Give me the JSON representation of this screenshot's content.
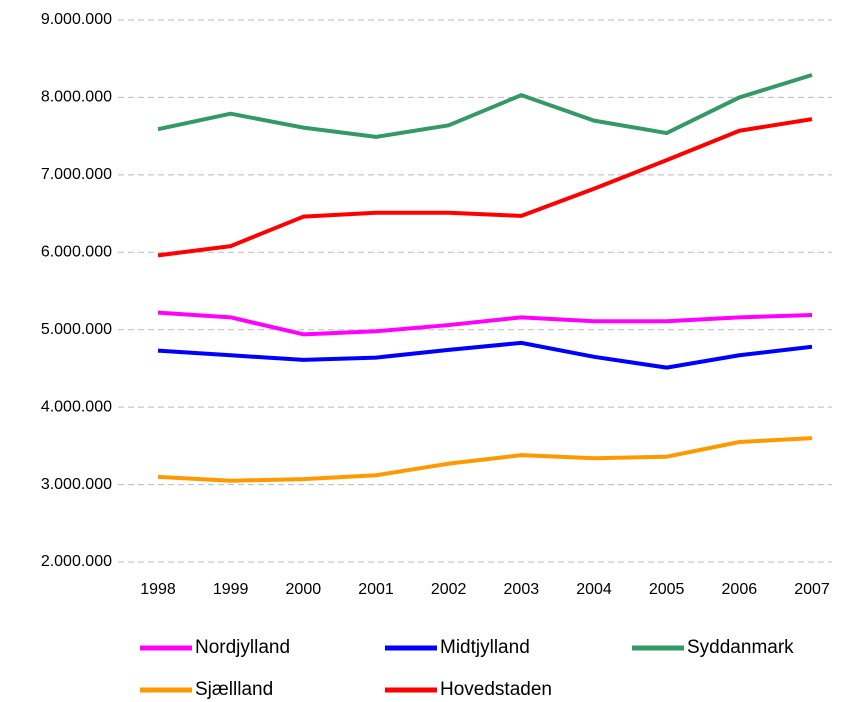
{
  "chart_data": {
    "type": "line",
    "categories": [
      "1998",
      "1999",
      "2000",
      "2001",
      "2002",
      "2003",
      "2004",
      "2005",
      "2006",
      "2007"
    ],
    "series": [
      {
        "name": "Nordjylland",
        "color": "#ff00ff",
        "values": [
          5220000,
          5160000,
          4940000,
          4980000,
          5060000,
          5160000,
          5110000,
          5110000,
          5160000,
          5190000
        ]
      },
      {
        "name": "Midtjylland",
        "color": "#0000ff",
        "values": [
          4730000,
          4670000,
          4610000,
          4640000,
          4740000,
          4830000,
          4650000,
          4510000,
          4670000,
          4780000
        ]
      },
      {
        "name": "Syddanmark",
        "color": "#339966",
        "values": [
          7590000,
          7790000,
          7610000,
          7490000,
          7640000,
          8030000,
          7700000,
          7540000,
          8000000,
          8290000
        ]
      },
      {
        "name": "Sjællland",
        "color": "#ff9900",
        "values": [
          3100000,
          3050000,
          3070000,
          3120000,
          3270000,
          3380000,
          3340000,
          3360000,
          3550000,
          3600000
        ]
      },
      {
        "name": "Hovedstaden",
        "color": "#ff0000",
        "values": [
          5960000,
          6080000,
          6460000,
          6510000,
          6510000,
          6470000,
          6820000,
          7190000,
          7570000,
          7720000
        ]
      }
    ],
    "ylim": [
      2000000,
      9000000
    ],
    "yticks": [
      {
        "value": 2000000,
        "label": "2.000.000"
      },
      {
        "value": 3000000,
        "label": "3.000.000"
      },
      {
        "value": 4000000,
        "label": "4.000.000"
      },
      {
        "value": 5000000,
        "label": "5.000.000"
      },
      {
        "value": 6000000,
        "label": "6.000.000"
      },
      {
        "value": 7000000,
        "label": "7.000.000"
      },
      {
        "value": 8000000,
        "label": "8.000.000"
      },
      {
        "value": 9000000,
        "label": "9.000.000"
      }
    ],
    "grid": true,
    "legend": "bottom"
  }
}
